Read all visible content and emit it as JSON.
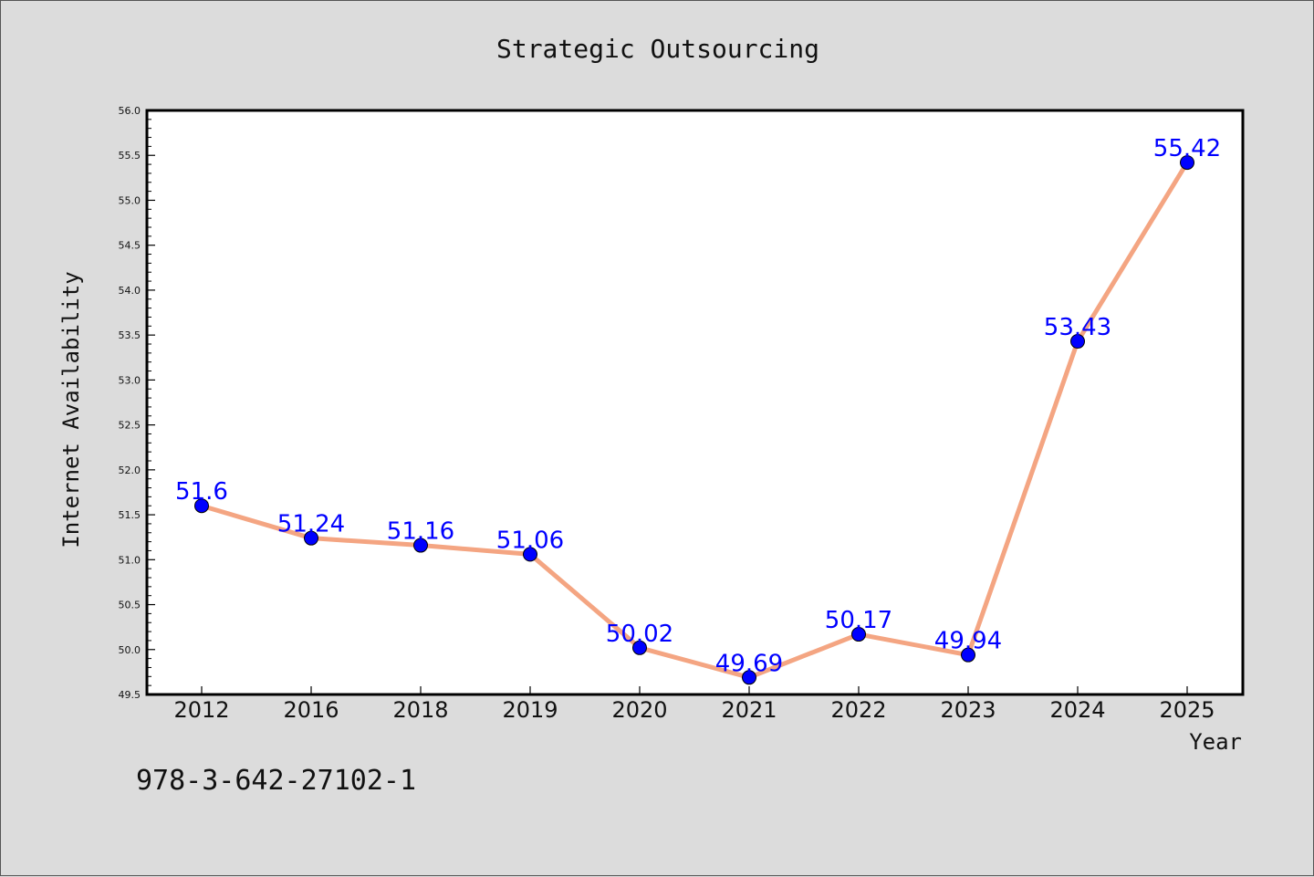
{
  "chart_data": {
    "type": "line",
    "title": "Strategic Outsourcing",
    "xlabel": "Year",
    "ylabel": "Internet Availability",
    "categories": [
      "2012",
      "2016",
      "2018",
      "2019",
      "2020",
      "2021",
      "2022",
      "2023",
      "2024",
      "2025"
    ],
    "series": [
      {
        "values": [
          51.6,
          51.24,
          51.16,
          51.06,
          50.02,
          49.69,
          50.17,
          49.94,
          53.43,
          55.42
        ],
        "data_labels": [
          "51.6",
          "51.24",
          "51.16",
          "51.06",
          "50.02",
          "49.69",
          "50.17",
          "49.94",
          "53.43",
          "55.42"
        ],
        "line_color": "#f4a582",
        "marker_color": "#0000ff"
      }
    ],
    "ylim": [
      49.5,
      56.0
    ],
    "yticks": [
      "49.5",
      "50.0",
      "50.5",
      "51.0",
      "51.5",
      "52.0",
      "52.5",
      "53.0",
      "53.5",
      "54.0",
      "54.5",
      "55.0",
      "55.5",
      "56.0"
    ],
    "grid": false,
    "background": "#dcdcdc",
    "plot_background": "#ffffff"
  },
  "footer": {
    "text": "978-3-642-27102-1"
  }
}
